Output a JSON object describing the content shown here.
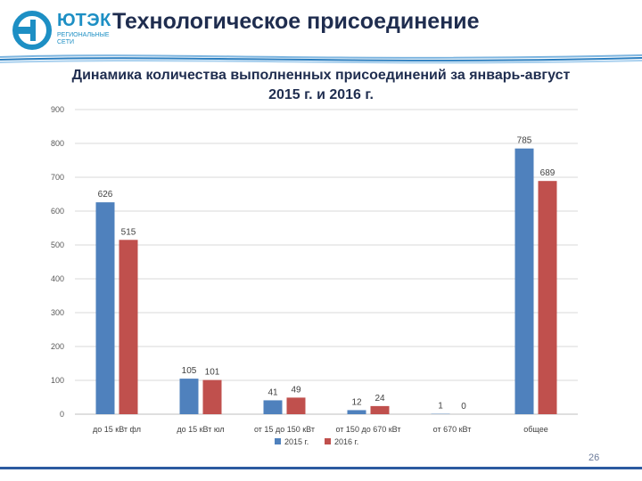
{
  "header": {
    "logo_text": "ЮТЭК",
    "logo_sub": "РЕГИОНАЛЬНЫЕ СЕТИ",
    "title": "Технологическое присоединение"
  },
  "chart_data": {
    "type": "bar",
    "title_line1": "Динамика количества выполненных присоединений за январь-август",
    "title_line2": "2015 г. и 2016 г.",
    "categories": [
      "до 15 кВт фл",
      "до 15 кВт юл",
      "от 15 до 150 кВт",
      "от 150 до 670 кВт",
      "от 670 кВт",
      "общее"
    ],
    "series": [
      {
        "name": "2015 г.",
        "values": [
          626,
          105,
          41,
          12,
          1,
          785
        ],
        "color": "#4f81bd"
      },
      {
        "name": "2016 г.",
        "values": [
          515,
          101,
          49,
          24,
          0,
          689
        ],
        "color": "#c0504d"
      }
    ],
    "ylim": [
      0,
      900
    ],
    "yticks": [
      0,
      100,
      200,
      300,
      400,
      500,
      600,
      700,
      800,
      900
    ],
    "grid": true,
    "legend": "bottom"
  },
  "footer": {
    "page_number": "26"
  }
}
